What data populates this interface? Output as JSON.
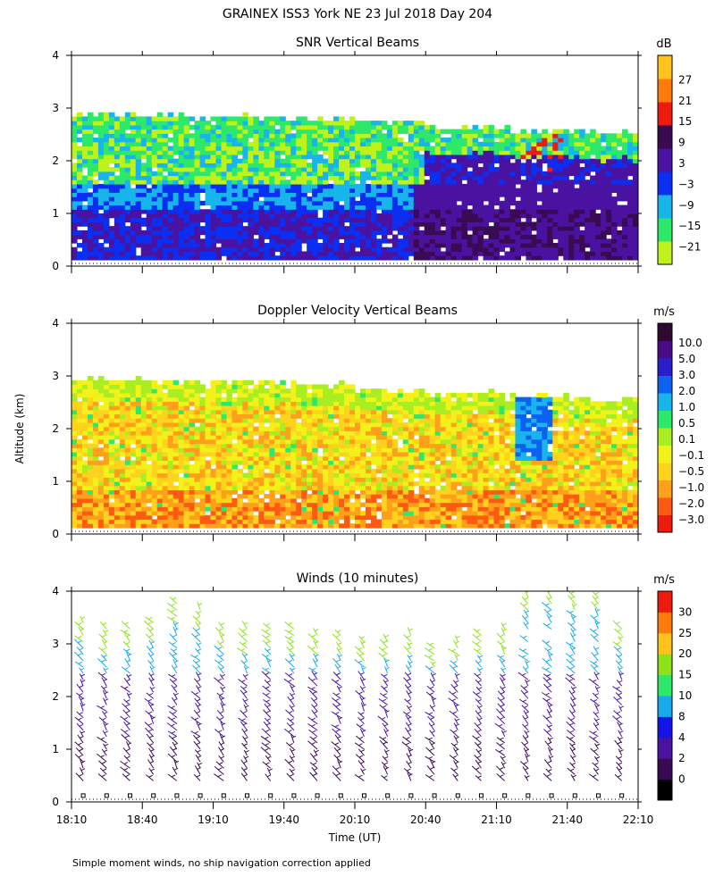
{
  "figure": {
    "title": "GRAINEX ISS3 York NE  23 Jul 2018 Day 204",
    "ylabel": "Altitude (km)",
    "xlabel": "Time (UT)",
    "footnote": "Simple moment winds, no ship navigation correction applied"
  },
  "chart_data": [
    {
      "type": "heatmap",
      "title": "SNR Vertical Beams",
      "colorbar_unit": "dB",
      "colorbar_ticks": [
        "27",
        "21",
        "15",
        "9",
        "3",
        "−3",
        "−9",
        "−15",
        "−21"
      ],
      "colorscale": [
        "#bff21a",
        "#2ee86a",
        "#18b4ec",
        "#0b2ff2",
        "#4a12a0",
        "#3a0a52",
        "#ee1a0e",
        "#ff7a0a",
        "#ffc21a"
      ],
      "ylim": [
        0,
        4
      ],
      "y_ticks": [
        "0",
        "1",
        "2",
        "3",
        "4"
      ],
      "xlim": [
        "18:10",
        "22:10"
      ],
      "description_values": {
        "data_top_km": [
          2.8,
          2.8,
          2.8,
          2.7,
          2.6,
          2.6,
          2.5,
          2.5
        ],
        "low_level_dB": -3,
        "upper_level_dB": -15
      }
    },
    {
      "type": "heatmap",
      "title": "Doppler Velocity Vertical Beams",
      "colorbar_unit": "m/s",
      "colorbar_ticks": [
        "10.0",
        "5.0",
        "3.0",
        "2.0",
        "1.0",
        "0.5",
        "0.1",
        "−0.1",
        "−0.5",
        "−1.0",
        "−2.0",
        "−3.0"
      ],
      "colorscale": [
        "#2e0a30",
        "#4a0c86",
        "#2a1ecc",
        "#0c62ee",
        "#18b4ec",
        "#2ee86a",
        "#a8ee20",
        "#f2f21a",
        "#ffd21e",
        "#ffa01a",
        "#ff5a12",
        "#ee1a0e"
      ],
      "ylim": [
        0,
        4
      ],
      "y_ticks": [
        "0",
        "1",
        "2",
        "3",
        "4"
      ],
      "xlim": [
        "18:10",
        "22:10"
      ]
    },
    {
      "type": "scatter",
      "title": "Winds (10 minutes)",
      "colorbar_unit": "m/s",
      "colorbar_ticks": [
        "30",
        "25",
        "20",
        "15",
        "10",
        "8",
        "4",
        "2",
        "0"
      ],
      "colorscale": [
        "#000000",
        "#3a0a52",
        "#4a12a0",
        "#1414e6",
        "#18a8ec",
        "#2ee86a",
        "#8ee21a",
        "#ffc21a",
        "#ff7a0a",
        "#ee1a0e"
      ],
      "ylim": [
        0,
        4
      ],
      "y_ticks": [
        "0",
        "1",
        "2",
        "3",
        "4"
      ],
      "x_ticks": [
        "18:10",
        "18:40",
        "19:10",
        "19:40",
        "20:10",
        "20:40",
        "21:10",
        "21:40",
        "22:10"
      ],
      "profile_count": 24,
      "profile_top_km": [
        3.5,
        3.3,
        3.4,
        3.5,
        3.8,
        3.7,
        3.4,
        3.3,
        3.4,
        3.3,
        3.2,
        3.2,
        3.1,
        3.1,
        3.2,
        3.0,
        3.1,
        3.2,
        3.3,
        4.1,
        4.2,
        4.1,
        4.1,
        3.4
      ]
    }
  ]
}
